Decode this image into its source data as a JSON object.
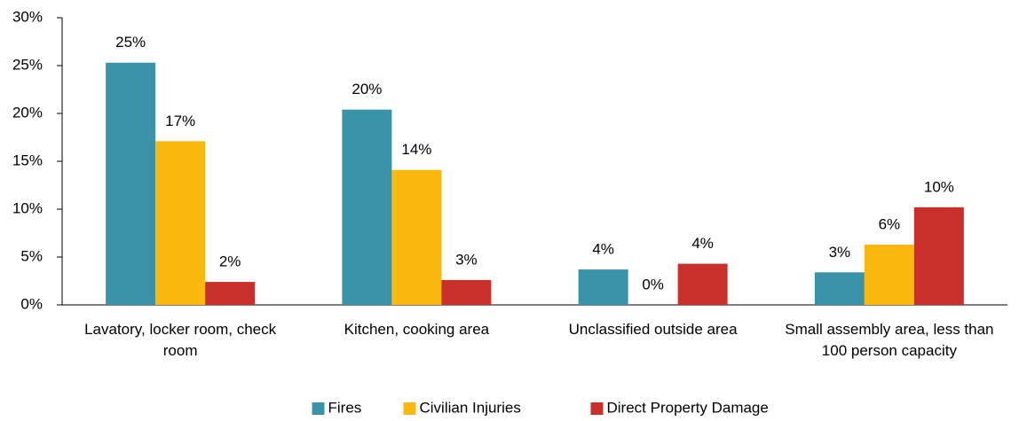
{
  "chart_data": {
    "type": "bar",
    "categories": [
      "Lavatory, locker room, check room",
      "Kitchen, cooking area",
      "Unclassified outside area",
      "Small assembly area, less than 100 person capacity"
    ],
    "series": [
      {
        "name": "Fires",
        "color": "#3a93a8",
        "values": [
          25.3,
          20.4,
          3.7,
          3.4
        ],
        "value_labels": [
          "25%",
          "20%",
          "4%",
          "3%"
        ]
      },
      {
        "name": "Civilian Injuries",
        "color": "#fbb90f",
        "values": [
          17.1,
          14.1,
          0,
          6.3
        ],
        "value_labels": [
          "17%",
          "14%",
          "0%",
          "6%"
        ]
      },
      {
        "name": "Direct Property Damage",
        "color": "#c9302c",
        "values": [
          2.4,
          2.6,
          4.3,
          10.2
        ],
        "value_labels": [
          "2%",
          "3%",
          "4%",
          "10%"
        ]
      }
    ],
    "ylim": [
      0,
      30
    ],
    "yticks": [
      {
        "value": 0,
        "label": "0%"
      },
      {
        "value": 5,
        "label": "5%"
      },
      {
        "value": 10,
        "label": "10%"
      },
      {
        "value": 15,
        "label": "15%"
      },
      {
        "value": 20,
        "label": "20%"
      },
      {
        "value": 25,
        "label": "25%"
      },
      {
        "value": 30,
        "label": "30%"
      }
    ],
    "legend": "bottom"
  }
}
